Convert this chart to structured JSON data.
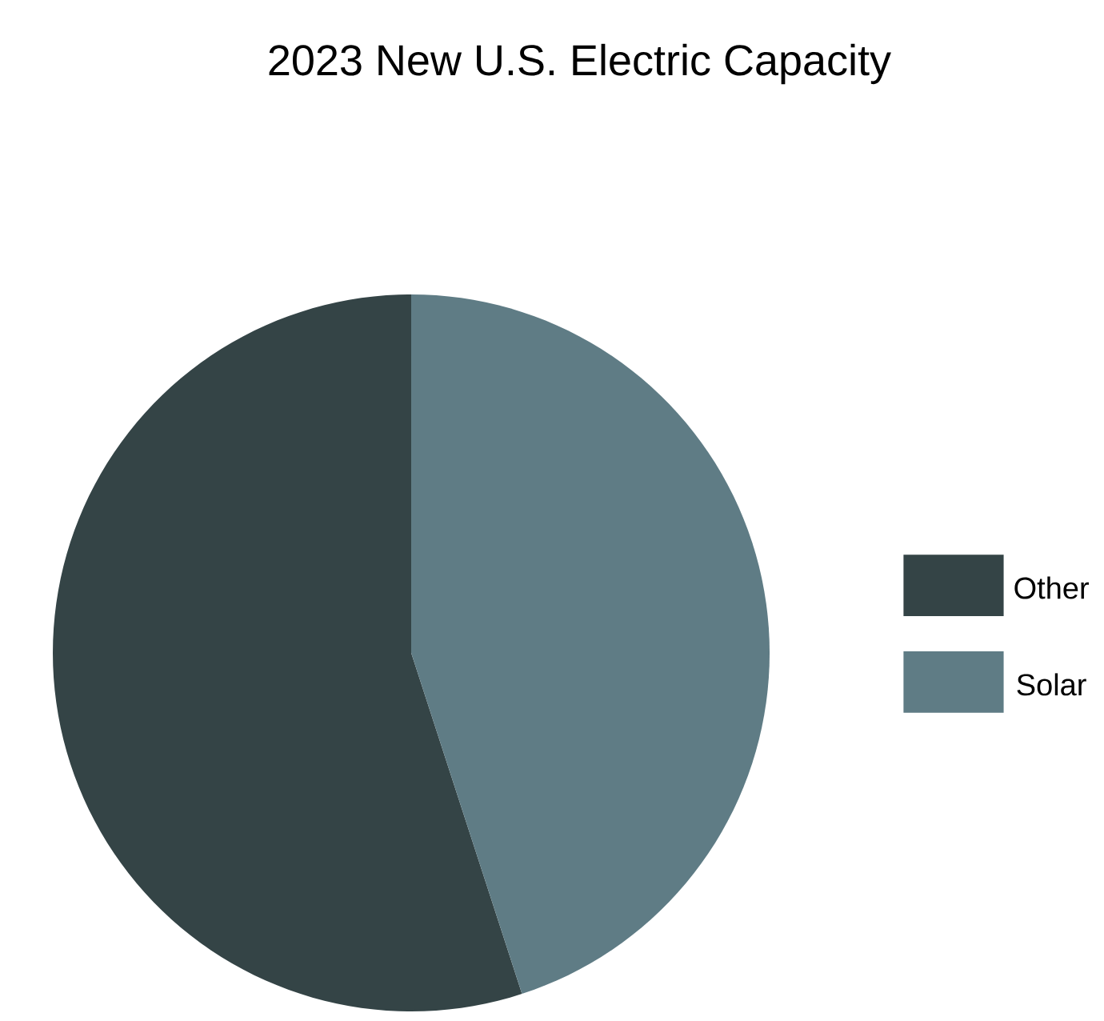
{
  "chart_data": {
    "type": "pie",
    "title": "2023 New U.S. Electric Capacity",
    "categories": [
      "Other",
      "Solar"
    ],
    "values": [
      55,
      45
    ],
    "colors": [
      "#344446",
      "#5f7c85"
    ],
    "legend": "right"
  }
}
